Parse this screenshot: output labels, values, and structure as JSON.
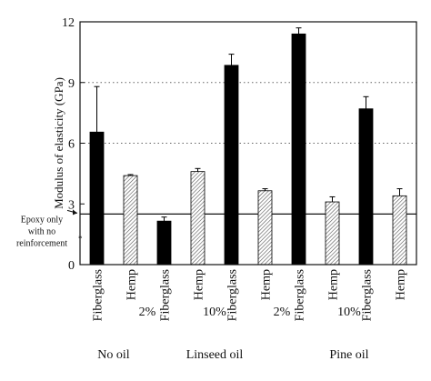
{
  "chart_data": {
    "type": "bar",
    "title": "",
    "ylabel": "Modulus of elasticity (GPa)",
    "ylim": [
      0,
      12
    ],
    "yticks": [
      "0",
      "3",
      "6",
      "9",
      "12"
    ],
    "grid": "dotted horizontal at 6 and 9",
    "bars": [
      {
        "label": "Fiberglass",
        "value": 6.55,
        "error": 2.25,
        "fill": "black"
      },
      {
        "label": "Hemp",
        "value": 4.4,
        "error": 0.05,
        "fill": "hatch"
      },
      {
        "label": "Fiberglass",
        "value": 2.15,
        "error": 0.2,
        "fill": "black"
      },
      {
        "label": "Hemp",
        "value": 4.6,
        "error": 0.15,
        "fill": "hatch"
      },
      {
        "label": "Fiberglass",
        "value": 9.85,
        "error": 0.55,
        "fill": "black"
      },
      {
        "label": "Hemp",
        "value": 3.65,
        "error": 0.1,
        "fill": "hatch"
      },
      {
        "label": "Fiberglass",
        "value": 11.4,
        "error": 0.3,
        "fill": "black"
      },
      {
        "label": "Hemp",
        "value": 3.1,
        "error": 0.25,
        "fill": "hatch"
      },
      {
        "label": "Fiberglass",
        "value": 7.7,
        "error": 0.6,
        "fill": "black"
      },
      {
        "label": "Hemp",
        "value": 3.4,
        "error": 0.35,
        "fill": "hatch"
      }
    ],
    "concentration_labels": [
      "2%",
      "10%",
      "2%",
      "10%"
    ],
    "group_labels": [
      "No oil",
      "Linseed oil",
      "Pine oil"
    ],
    "reference_line": {
      "value": 2.5,
      "label": [
        "Epoxy only",
        "with no",
        "reinforcement",
        "*"
      ]
    }
  }
}
